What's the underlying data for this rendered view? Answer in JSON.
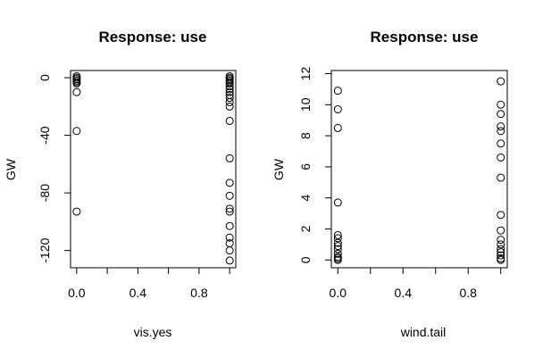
{
  "chart_data": [
    {
      "type": "scatter",
      "title": "Response: use",
      "xlabel": "vis.yes",
      "ylabel": "GW",
      "xlim": [
        -0.04,
        1.04
      ],
      "ylim": [
        -132,
        5
      ],
      "x_ticks": [
        0.0,
        0.4,
        0.8
      ],
      "x_tick_labels": [
        "0.0",
        "0.4",
        "0.8"
      ],
      "x_minor_ticks": [
        0.2,
        0.6,
        1.0
      ],
      "y_ticks": [
        0,
        -40,
        -80,
        -120
      ],
      "y_tick_labels": [
        "0",
        "-40",
        "-80",
        "-120"
      ],
      "grid": false,
      "legend": "none",
      "marker": "open-circle",
      "points": [
        {
          "x": 0,
          "y": 1
        },
        {
          "x": 0,
          "y": 0
        },
        {
          "x": 0,
          "y": -1
        },
        {
          "x": 0,
          "y": -2
        },
        {
          "x": 0,
          "y": -3
        },
        {
          "x": 0,
          "y": -4
        },
        {
          "x": 0,
          "y": -10
        },
        {
          "x": 0,
          "y": -37
        },
        {
          "x": 0,
          "y": -93
        },
        {
          "x": 1,
          "y": 1
        },
        {
          "x": 1,
          "y": 0
        },
        {
          "x": 1,
          "y": -1
        },
        {
          "x": 1,
          "y": -2
        },
        {
          "x": 1,
          "y": -3
        },
        {
          "x": 1,
          "y": -4
        },
        {
          "x": 1,
          "y": -6
        },
        {
          "x": 1,
          "y": -8
        },
        {
          "x": 1,
          "y": -10
        },
        {
          "x": 1,
          "y": -12
        },
        {
          "x": 1,
          "y": -14
        },
        {
          "x": 1,
          "y": -17
        },
        {
          "x": 1,
          "y": -20
        },
        {
          "x": 1,
          "y": -30
        },
        {
          "x": 1,
          "y": -56
        },
        {
          "x": 1,
          "y": -73
        },
        {
          "x": 1,
          "y": -82
        },
        {
          "x": 1,
          "y": -91
        },
        {
          "x": 1,
          "y": -93
        },
        {
          "x": 1,
          "y": -103
        },
        {
          "x": 1,
          "y": -111
        },
        {
          "x": 1,
          "y": -115
        },
        {
          "x": 1,
          "y": -120
        },
        {
          "x": 1,
          "y": -127
        }
      ]
    },
    {
      "type": "scatter",
      "title": "Response: use",
      "xlabel": "wind.tail",
      "ylabel": "GW",
      "xlim": [
        -0.04,
        1.04
      ],
      "ylim": [
        -0.5,
        12.2
      ],
      "x_ticks": [
        0.0,
        0.4,
        0.8
      ],
      "x_tick_labels": [
        "0.0",
        "0.4",
        "0.8"
      ],
      "x_minor_ticks": [
        0.2,
        0.6,
        1.0
      ],
      "y_ticks": [
        0,
        2,
        4,
        6,
        8,
        10,
        12
      ],
      "y_tick_labels": [
        "0",
        "2",
        "4",
        "6",
        "8",
        "10",
        "12"
      ],
      "grid": false,
      "legend": "none",
      "marker": "open-circle",
      "points": [
        {
          "x": 0,
          "y": 10.9
        },
        {
          "x": 0,
          "y": 9.7
        },
        {
          "x": 0,
          "y": 8.5
        },
        {
          "x": 0,
          "y": 3.7
        },
        {
          "x": 0,
          "y": 1.6
        },
        {
          "x": 0,
          "y": 1.4
        },
        {
          "x": 0,
          "y": 1.1
        },
        {
          "x": 0,
          "y": 0.9
        },
        {
          "x": 0,
          "y": 0.7
        },
        {
          "x": 0,
          "y": 0.4
        },
        {
          "x": 0,
          "y": 0.2
        },
        {
          "x": 0,
          "y": 0.1
        },
        {
          "x": 0,
          "y": 0.0
        },
        {
          "x": 1,
          "y": 11.5
        },
        {
          "x": 1,
          "y": 10.0
        },
        {
          "x": 1,
          "y": 9.4
        },
        {
          "x": 1,
          "y": 8.6
        },
        {
          "x": 1,
          "y": 8.3
        },
        {
          "x": 1,
          "y": 7.5
        },
        {
          "x": 1,
          "y": 6.6
        },
        {
          "x": 1,
          "y": 5.3
        },
        {
          "x": 1,
          "y": 2.9
        },
        {
          "x": 1,
          "y": 1.9
        },
        {
          "x": 1,
          "y": 1.3
        },
        {
          "x": 1,
          "y": 1.0
        },
        {
          "x": 1,
          "y": 0.7
        },
        {
          "x": 1,
          "y": 0.5
        },
        {
          "x": 1,
          "y": 0.3
        },
        {
          "x": 1,
          "y": 0.1
        },
        {
          "x": 1,
          "y": 0.0
        }
      ]
    }
  ]
}
